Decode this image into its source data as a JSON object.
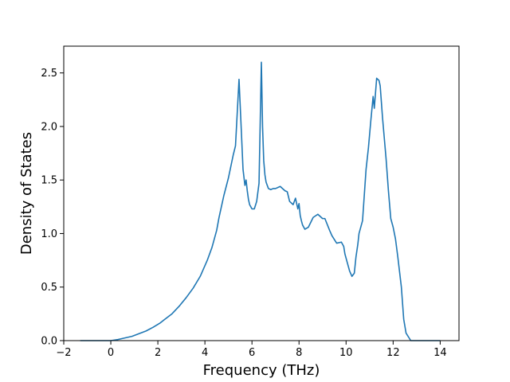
{
  "chart_data": {
    "type": "line",
    "title": "",
    "xlabel": "Frequency (THz)",
    "ylabel": "Density of States",
    "xlim": [
      -2,
      14.8
    ],
    "ylim": [
      0,
      2.75
    ],
    "xticks": [
      -2,
      0,
      2,
      4,
      6,
      8,
      10,
      12,
      14
    ],
    "xtick_labels": [
      "−2",
      "0",
      "2",
      "4",
      "6",
      "8",
      "10",
      "12",
      "14"
    ],
    "yticks": [
      0,
      0.5,
      1.0,
      1.5,
      2.0,
      2.5
    ],
    "ytick_labels": [
      "0.0",
      "0.5",
      "1.0",
      "1.5",
      "2.0",
      "2.5"
    ],
    "grid": false,
    "legend": "none",
    "line_color": "#1f77b4",
    "series": [
      {
        "x": [
          -1.3,
          -0.5,
          0,
          0.3,
          0.6,
          0.9,
          1.2,
          1.5,
          1.8,
          2.1,
          2.3,
          2.6,
          2.9,
          3.2,
          3.5,
          3.8,
          4.1,
          4.3,
          4.5,
          4.6,
          4.8,
          5.0,
          5.2,
          5.3,
          5.45,
          5.55,
          5.62,
          5.7,
          5.75,
          5.8,
          5.85,
          5.9,
          6.0,
          6.1,
          6.2,
          6.3,
          6.4,
          6.45,
          6.5,
          6.55,
          6.6,
          6.7,
          6.8,
          6.9,
          7.0,
          7.2,
          7.4,
          7.5,
          7.6,
          7.75,
          7.85,
          7.95,
          8.0,
          8.05,
          8.1,
          8.15,
          8.25,
          8.4,
          8.6,
          8.8,
          9.0,
          9.1,
          9.3,
          9.4,
          9.6,
          9.8,
          9.9,
          9.95,
          10.05,
          10.15,
          10.25,
          10.35,
          10.42,
          10.5,
          10.55,
          10.7,
          10.85,
          10.95,
          11.05,
          11.15,
          11.2,
          11.3,
          11.4,
          11.45,
          11.55,
          11.7,
          11.8,
          11.9,
          12.0,
          12.1,
          12.2,
          12.35,
          12.45,
          12.55,
          12.75,
          13.0,
          13.5,
          14.0
        ],
        "y": [
          0.0,
          0.0,
          0.0,
          0.01,
          0.025,
          0.04,
          0.065,
          0.09,
          0.125,
          0.165,
          0.2,
          0.25,
          0.32,
          0.4,
          0.49,
          0.6,
          0.75,
          0.87,
          1.03,
          1.15,
          1.35,
          1.52,
          1.73,
          1.82,
          2.44,
          1.95,
          1.6,
          1.45,
          1.5,
          1.4,
          1.32,
          1.27,
          1.23,
          1.23,
          1.3,
          1.47,
          2.6,
          2.0,
          1.68,
          1.55,
          1.48,
          1.42,
          1.41,
          1.42,
          1.42,
          1.44,
          1.4,
          1.39,
          1.3,
          1.27,
          1.33,
          1.23,
          1.28,
          1.17,
          1.12,
          1.08,
          1.04,
          1.06,
          1.15,
          1.18,
          1.14,
          1.14,
          1.03,
          0.98,
          0.91,
          0.92,
          0.88,
          0.81,
          0.73,
          0.65,
          0.6,
          0.63,
          0.78,
          0.9,
          1.0,
          1.12,
          1.6,
          1.8,
          2.05,
          2.28,
          2.17,
          2.45,
          2.43,
          2.38,
          2.08,
          1.7,
          1.4,
          1.14,
          1.06,
          0.95,
          0.78,
          0.5,
          0.2,
          0.07,
          0.0,
          0.0,
          0.0,
          0.0
        ]
      }
    ]
  }
}
